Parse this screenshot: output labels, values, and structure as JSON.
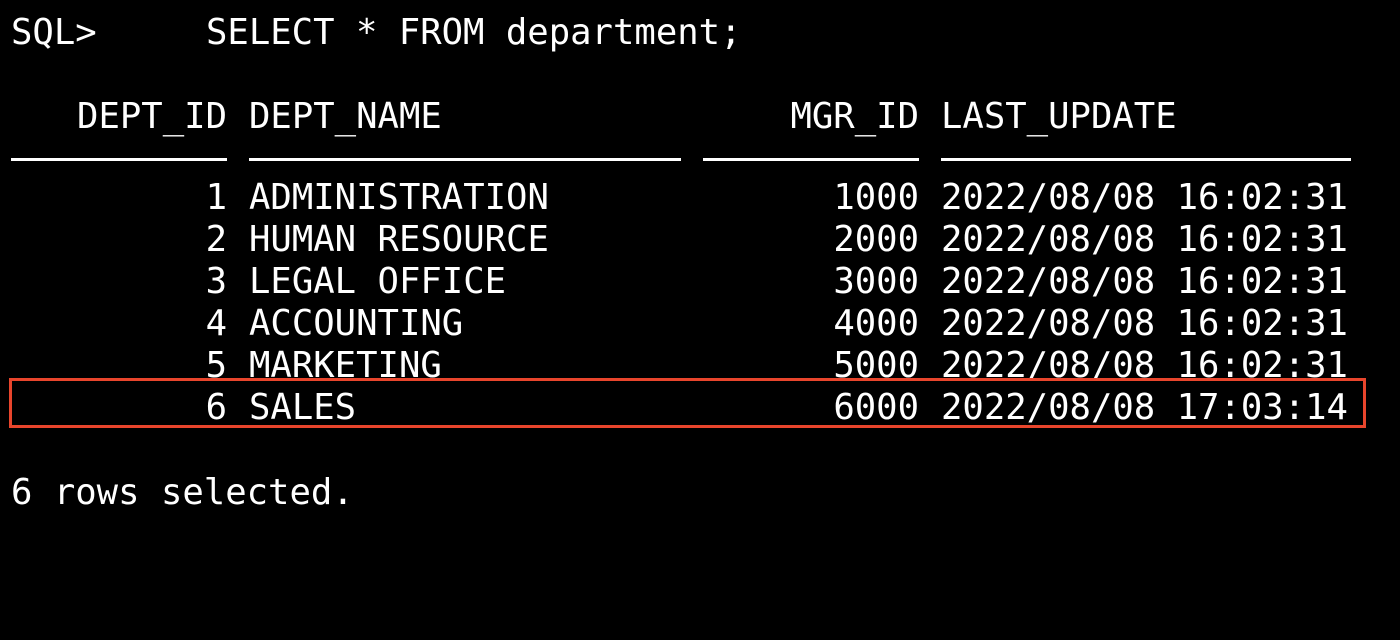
{
  "terminal": {
    "prompt": "SQL>",
    "command": "SELECT * FROM department;",
    "columns": {
      "dept_id": "DEPT_ID",
      "dept_name": "DEPT_NAME",
      "mgr_id": "MGR_ID",
      "last_update": "LAST_UPDATE"
    },
    "rows": [
      {
        "dept_id": "1",
        "dept_name": "ADMINISTRATION",
        "mgr_id": "1000",
        "last_update": "2022/08/08 16:02:31"
      },
      {
        "dept_id": "2",
        "dept_name": "HUMAN RESOURCE",
        "mgr_id": "2000",
        "last_update": "2022/08/08 16:02:31"
      },
      {
        "dept_id": "3",
        "dept_name": "LEGAL OFFICE",
        "mgr_id": "3000",
        "last_update": "2022/08/08 16:02:31"
      },
      {
        "dept_id": "4",
        "dept_name": "ACCOUNTING",
        "mgr_id": "4000",
        "last_update": "2022/08/08 16:02:31"
      },
      {
        "dept_id": "5",
        "dept_name": "MARKETING",
        "mgr_id": "5000",
        "last_update": "2022/08/08 16:02:31"
      },
      {
        "dept_id": "6",
        "dept_name": "SALES",
        "mgr_id": "6000",
        "last_update": "2022/08/08 17:03:14"
      }
    ],
    "footer": "6 rows selected.",
    "colors": {
      "background": "#000000",
      "text": "#ffffff",
      "highlight": "#e8452c"
    }
  }
}
